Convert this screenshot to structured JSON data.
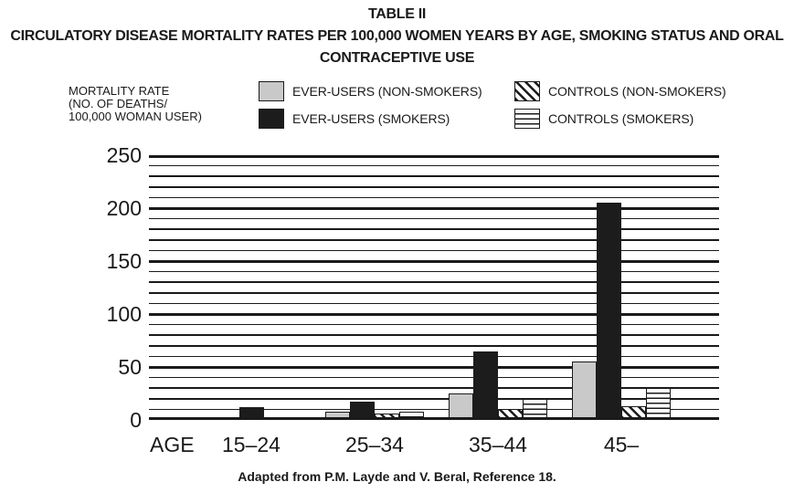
{
  "page": {
    "title_lines": [
      "TABLE II",
      "CIRCULATORY DISEASE MORTALITY RATES PER 100,000 WOMEN YEARS BY AGE, SMOKING STATUS AND ORAL",
      "CONTRACEPTIVE USE"
    ],
    "footer": "Adapted from P.M. Layde and V. Beral, Reference 18."
  },
  "legend": {
    "axis_note_lines": [
      "MORTALITY RATE",
      "(NO. OF DEATHS/",
      "100,000 WOMAN USER)"
    ],
    "items": [
      {
        "label": "EVER-USERS (NON-SMOKERS)",
        "pattern": "solid-gray",
        "fill": "#c9c9c9"
      },
      {
        "label": "EVER-USERS (SMOKERS)",
        "pattern": "solid-black",
        "fill": "#1c1c1c"
      },
      {
        "label": "CONTROLS (NON-SMOKERS)",
        "pattern": "diagonal-hatch",
        "fill": "#ffffff"
      },
      {
        "label": "CONTROLS (SMOKERS)",
        "pattern": "horizontal-lines",
        "fill": "#ffffff"
      }
    ]
  },
  "chart_data": {
    "type": "bar",
    "title": "TABLE II — CIRCULATORY DISEASE MORTALITY RATES PER 100,000 WOMEN YEARS BY AGE, SMOKING STATUS AND ORAL CONTRACEPTIVE USE",
    "xlabel": "AGE",
    "ylabel": "MORTALITY RATE (NO. OF DEATHS/100,000 WOMAN USER)",
    "categories": [
      "15–24",
      "25–34",
      "35–44",
      "45–"
    ],
    "series": [
      {
        "name": "EVER-USERS (NON-SMOKERS)",
        "pattern": "solid-gray",
        "fill": "#c9c9c9",
        "values": [
          0,
          8,
          25,
          55
        ]
      },
      {
        "name": "EVER-USERS (SMOKERS)",
        "pattern": "solid-black",
        "fill": "#1c1c1c",
        "values": [
          12,
          17,
          65,
          205
        ]
      },
      {
        "name": "CONTROLS (NON-SMOKERS)",
        "pattern": "diagonal-hatch",
        "fill": "#ffffff",
        "values": [
          0,
          6,
          10,
          13
        ]
      },
      {
        "name": "CONTROLS (SMOKERS)",
        "pattern": "horizontal-lines",
        "fill": "#ffffff",
        "values": [
          0,
          8,
          20,
          30
        ]
      }
    ],
    "ylim": [
      0,
      250
    ],
    "yticks": [
      0,
      50,
      100,
      150,
      200,
      250
    ],
    "ytick_minor_step": 10,
    "ytick_major_step": 50,
    "grid": "horizontal, minor every 10 and bold major every 50",
    "legend_position": "top",
    "source_note": "Adapted from P.M. Layde and V. Beral, Reference 18."
  }
}
